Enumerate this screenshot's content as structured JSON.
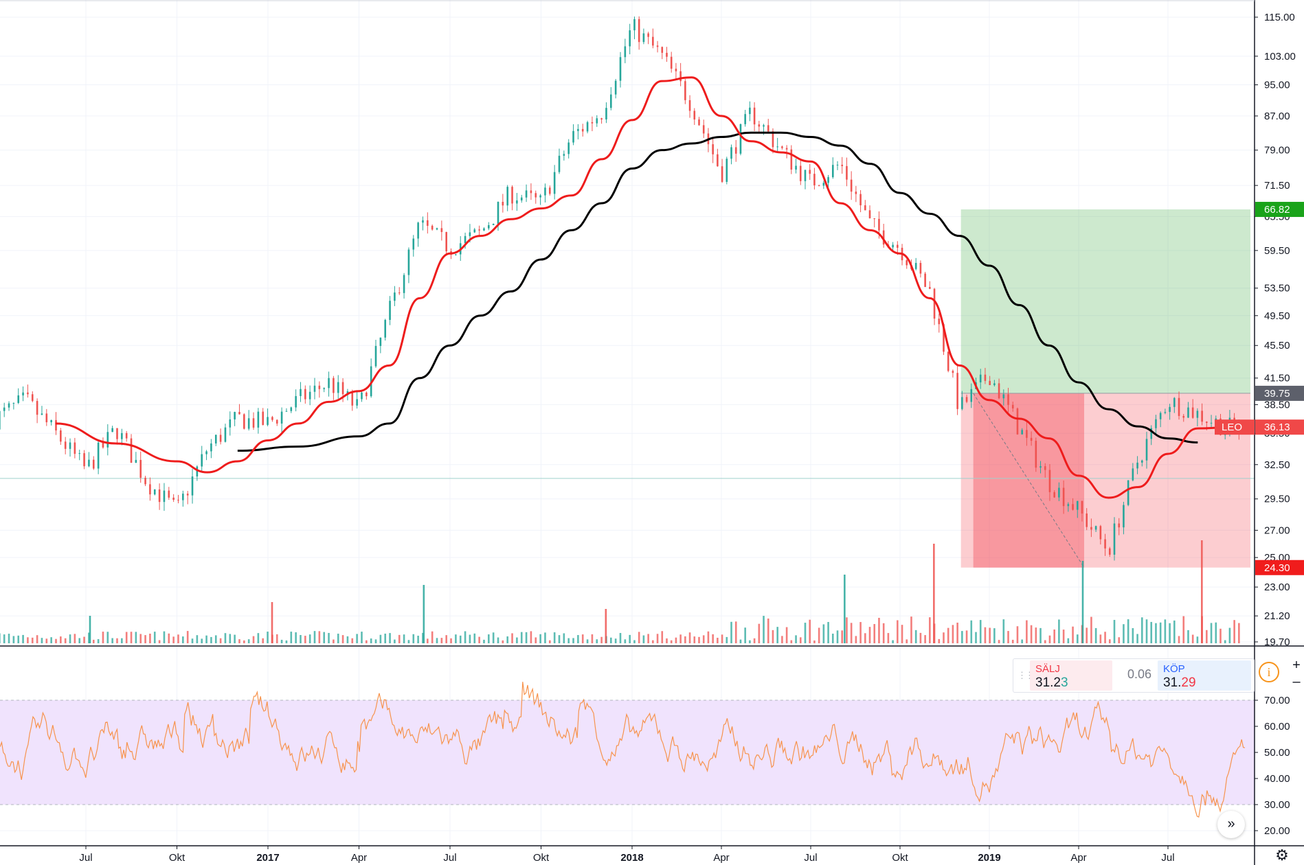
{
  "chart_data": [
    {
      "type": "candlestick",
      "symbol": "LEO",
      "x_labels": [
        "Jul",
        "Okt",
        "2017",
        "Apr",
        "Jul",
        "Okt",
        "2018",
        "Apr",
        "Jul",
        "Okt",
        "2019",
        "Apr",
        "Jul"
      ],
      "y_ticks": [
        "115.00",
        "103.00",
        "95.00",
        "87.00",
        "79.00",
        "71.50",
        "65.50",
        "59.50",
        "53.50",
        "49.50",
        "45.50",
        "41.50",
        "38.50",
        "35.50",
        "32.50",
        "29.50",
        "27.00",
        "25.00",
        "23.00",
        "21.20",
        "19.70"
      ],
      "price_tags": [
        {
          "label": "",
          "value": "66.82",
          "color": "#1aa31a"
        },
        {
          "label": "",
          "value": "39.75",
          "color": "#5d606b"
        },
        {
          "label": "LEO",
          "value": "36.13",
          "color": "#f04848"
        },
        {
          "label": "",
          "value": "24.30",
          "color": "#f01c1c"
        }
      ],
      "ma_fast_color": "#ee1c1c",
      "ma_slow_color": "#000000",
      "up_color": "#26a69a",
      "down_color": "#ef5350",
      "scale": "log",
      "grid": true,
      "price_path": [
        [
          "2016-04",
          37.0
        ],
        [
          "2016-05",
          39.0
        ],
        [
          "2016-06",
          35.5
        ],
        [
          "2016-07",
          32.0
        ],
        [
          "2016-08",
          36.0
        ],
        [
          "2016-09",
          31.0
        ],
        [
          "2016-10",
          28.5
        ],
        [
          "2016-11",
          34.0
        ],
        [
          "2016-12",
          37.0
        ],
        [
          "2017-01",
          36.5
        ],
        [
          "2017-02",
          39.0
        ],
        [
          "2017-03",
          41.0
        ],
        [
          "2017-04",
          38.0
        ],
        [
          "2017-05",
          50.0
        ],
        [
          "2017-06",
          64.0
        ],
        [
          "2017-07",
          60.0
        ],
        [
          "2017-08",
          62.5
        ],
        [
          "2017-09",
          70.0
        ],
        [
          "2017-10",
          68.0
        ],
        [
          "2017-11",
          82.0
        ],
        [
          "2017-12",
          88.0
        ],
        [
          "2018-01",
          112.0
        ],
        [
          "2018-02",
          103.0
        ],
        [
          "2018-03",
          90.0
        ],
        [
          "2018-04",
          74.0
        ],
        [
          "2018-05",
          88.0
        ],
        [
          "2018-06",
          79.0
        ],
        [
          "2018-07",
          72.0
        ],
        [
          "2018-08",
          76.0
        ],
        [
          "2018-09",
          64.0
        ],
        [
          "2018-10",
          60.0
        ],
        [
          "2018-11",
          53.0
        ],
        [
          "2018-12",
          38.0
        ],
        [
          "2019-01",
          42.0
        ],
        [
          "2019-02",
          36.0
        ],
        [
          "2019-03",
          31.0
        ],
        [
          "2019-04",
          28.5
        ],
        [
          "2019-05",
          25.5
        ],
        [
          "2019-06",
          33.0
        ],
        [
          "2019-07",
          39.0
        ],
        [
          "2019-08",
          37.5
        ],
        [
          "2019-09",
          36.1
        ]
      ],
      "ma_fast": [
        [
          "2016-06",
          36.5
        ],
        [
          "2016-08",
          34.5
        ],
        [
          "2016-10",
          32.8
        ],
        [
          "2016-11",
          31.8
        ],
        [
          "2016-12",
          32.8
        ],
        [
          "2017-01",
          34.8
        ],
        [
          "2017-02",
          36.5
        ],
        [
          "2017-03",
          38.8
        ],
        [
          "2017-04",
          40.0
        ],
        [
          "2017-05",
          43.0
        ],
        [
          "2017-06",
          52.0
        ],
        [
          "2017-07",
          59.0
        ],
        [
          "2017-08",
          62.0
        ],
        [
          "2017-09",
          65.0
        ],
        [
          "2017-10",
          67.0
        ],
        [
          "2017-11",
          69.5
        ],
        [
          "2017-12",
          77.0
        ],
        [
          "2018-01",
          86.0
        ],
        [
          "2018-02",
          96.0
        ],
        [
          "2018-03",
          97.0
        ],
        [
          "2018-04",
          87.0
        ],
        [
          "2018-05",
          81.0
        ],
        [
          "2018-06",
          78.5
        ],
        [
          "2018-07",
          76.5
        ],
        [
          "2018-08",
          68.0
        ],
        [
          "2018-09",
          63.0
        ],
        [
          "2018-10",
          59.0
        ],
        [
          "2018-11",
          52.0
        ],
        [
          "2018-12",
          43.0
        ],
        [
          "2019-01",
          39.0
        ],
        [
          "2019-02",
          37.0
        ],
        [
          "2019-03",
          35.0
        ],
        [
          "2019-04",
          31.5
        ],
        [
          "2019-05",
          29.6
        ],
        [
          "2019-06",
          30.5
        ],
        [
          "2019-07",
          33.5
        ],
        [
          "2019-08",
          36.0
        ],
        [
          "2019-09",
          36.1
        ]
      ],
      "ma_slow": [
        [
          "2016-12",
          33.8
        ],
        [
          "2017-02",
          34.2
        ],
        [
          "2017-04",
          35.2
        ],
        [
          "2017-05",
          36.5
        ],
        [
          "2017-06",
          41.5
        ],
        [
          "2017-07",
          45.5
        ],
        [
          "2017-08",
          49.5
        ],
        [
          "2017-09",
          53.0
        ],
        [
          "2017-10",
          58.0
        ],
        [
          "2017-11",
          63.0
        ],
        [
          "2017-12",
          68.0
        ],
        [
          "2018-01",
          75.0
        ],
        [
          "2018-02",
          79.0
        ],
        [
          "2018-03",
          80.5
        ],
        [
          "2018-04",
          82.0
        ],
        [
          "2018-05",
          83.0
        ],
        [
          "2018-06",
          83.0
        ],
        [
          "2018-07",
          82.0
        ],
        [
          "2018-08",
          80.0
        ],
        [
          "2018-09",
          76.0
        ],
        [
          "2018-10",
          70.0
        ],
        [
          "2018-11",
          66.0
        ],
        [
          "2018-12",
          62.0
        ],
        [
          "2019-01",
          57.0
        ],
        [
          "2019-02",
          51.0
        ],
        [
          "2019-03",
          45.5
        ],
        [
          "2019-04",
          41.0
        ],
        [
          "2019-05",
          38.0
        ],
        [
          "2019-06",
          36.2
        ],
        [
          "2019-07",
          35.0
        ],
        [
          "2019-08",
          34.6
        ]
      ],
      "long_position": {
        "entry": 39.75,
        "target": 66.82,
        "stop": 24.3
      }
    },
    {
      "type": "line",
      "indicator": "RSI",
      "y_ticks": [
        "70.00",
        "60.00",
        "50.00",
        "40.00",
        "30.00",
        "20.00"
      ],
      "band": [
        30,
        70
      ],
      "line_color": "#f7934c",
      "band_color": "#f0e3fd"
    }
  ],
  "trade_widget": {
    "sell_label": "SÄLJ",
    "sell_price_main": "31.2",
    "sell_price_last": "3",
    "spread": "0.06",
    "buy_label": "KÖP",
    "buy_price_main": "31.",
    "buy_price_last": "29"
  },
  "controls": {
    "zoom_in": "+",
    "zoom_out": "–",
    "scroll_right": "»",
    "info": "i",
    "settings": "⚙"
  }
}
